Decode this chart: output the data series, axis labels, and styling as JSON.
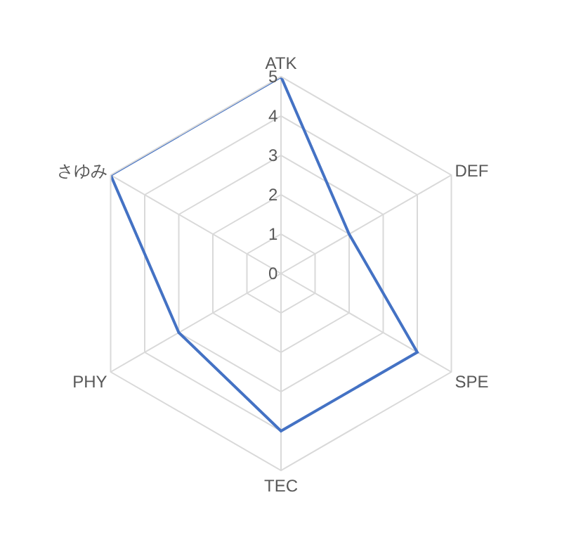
{
  "chart_data": {
    "type": "radar",
    "categories": [
      "ATK",
      "DEF",
      "SPE",
      "TEC",
      "PHY",
      "さゆみ"
    ],
    "series": [
      {
        "color": "#4472c4",
        "values": [
          5,
          2,
          4,
          4,
          3,
          5
        ]
      }
    ],
    "ylim": [
      0,
      5
    ],
    "yticks": [
      0,
      1,
      2,
      3,
      4,
      5
    ],
    "grid": true,
    "marker": "none",
    "line_style": "solid"
  }
}
